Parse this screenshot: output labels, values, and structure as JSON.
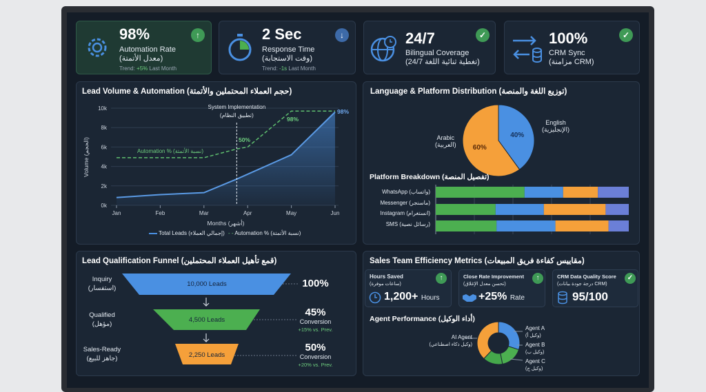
{
  "kpis": [
    {
      "value": "98%",
      "label": "Automation Rate",
      "label_ar": "(معدل الأتمتة)",
      "trend_prefix": "Trend: ",
      "trend_value": "+5%",
      "trend_suffix": " Last Month",
      "badge": "arrow-up",
      "icon": "gear-icon"
    },
    {
      "value": "2 Sec",
      "label": "Response Time",
      "label_ar": "(وقت الاستجابة)",
      "trend_prefix": "Trend: ",
      "trend_value": "-1s",
      "trend_suffix": " Last Month",
      "badge": "arrow-down",
      "icon": "stopwatch-icon"
    },
    {
      "value": "24/7",
      "label": "Bilingual Coverage",
      "label_ar": "(تغطية ثنائية اللغة 24/7)",
      "badge": "check",
      "icon": "globe-clock-icon"
    },
    {
      "value": "100%",
      "label": "CRM Sync",
      "label_ar": "(مزامنة CRM)",
      "badge": "check",
      "icon": "sync-database-icon"
    }
  ],
  "colors": {
    "green": "#4caf50",
    "blue": "#4a90e2",
    "orange": "#f5a03a",
    "purple": "#6b7fd7",
    "accent_green": "#6fcf7f"
  },
  "lead_chart": {
    "title": "Lead Volume & Automation (حجم العملاء المحتملين والأتمتة)",
    "chart_data": {
      "type": "line",
      "categories": [
        "Jan",
        "Feb",
        "Mar",
        "Apr",
        "May",
        "Jun"
      ],
      "y_ticks": [
        "0k",
        "2k",
        "4k",
        "6k",
        "8k",
        "10k"
      ],
      "ylim": [
        0,
        10000
      ],
      "xlabel": "Months (أشهر)",
      "ylabel": "Volume (الحجم)",
      "series": [
        {
          "name": "Total Leads (إجمالي العملاء)",
          "x": [
            0,
            1,
            2,
            2.75,
            4,
            5
          ],
          "values": [
            800,
            1100,
            1300,
            2700,
            5200,
            9600
          ]
        },
        {
          "name": "Automation % (نسبة الأتمتة)",
          "x": [
            0,
            1,
            2,
            2.75,
            3,
            4,
            5
          ],
          "values": [
            4900,
            4900,
            4900,
            5800,
            6000,
            9700,
            9700
          ]
        }
      ],
      "annotation": "System Implementation",
      "annotation_ar": "(تطبيق النظام)",
      "auto_label": "Automation % (نسبة الأتمتة)",
      "point_labels": [
        "50%",
        "98%",
        "98%"
      ]
    }
  },
  "lang_chart": {
    "title": "Language & Platform Distribution (توزيع اللغة والمنصة)",
    "chart_data": {
      "type": "pie",
      "slices": [
        {
          "name": "English",
          "name_ar": "(الإنجليزية)",
          "value": 40,
          "label": "40%"
        },
        {
          "name": "Arabic",
          "name_ar": "(العربية)",
          "value": 60,
          "label": "60%"
        }
      ]
    }
  },
  "platform": {
    "title": "Platform Breakdown (تفصيل المنصة)",
    "labels": [
      "WhatsApp (واتساب)",
      "Messenger (ماسنجر)",
      "Instagram (انستغرام)",
      "SMS (رسائل نصية)"
    ],
    "chart_data": {
      "type": "bar",
      "stacked": true,
      "bars": [
        [
          46,
          20,
          18,
          16
        ],
        [
          31,
          25,
          32,
          12
        ],
        [
          31.5,
          30.5,
          27.5,
          10.5
        ]
      ]
    }
  },
  "funnel": {
    "title": "Lead Qualification Funnel (قمع تأهيل العملاء المحتملين)",
    "stages": [
      {
        "name": "Inquiry",
        "name_ar": "(استفسار)",
        "leads": "10,000 Leads",
        "pct": "100%"
      },
      {
        "name": "Qualified",
        "name_ar": "(مؤهل)",
        "leads": "4,500 Leads",
        "pct": "45%",
        "conv": "Conversion",
        "delta": "+15% vs. Prev."
      },
      {
        "name": "Sales-Ready",
        "name_ar": "(جاهز للبيع)",
        "leads": "2,250 Leads",
        "pct": "50%",
        "conv": "Conversion",
        "delta": "+20% vs. Prev."
      }
    ]
  },
  "sales": {
    "title": "Sales Team Efficiency Metrics (مقاييس كفاءة فريق المبيعات)",
    "metrics": [
      {
        "label": "Hours Saved",
        "label_ar": "(ساعات موفرة)",
        "value": "1,200+",
        "unit": "Hours"
      },
      {
        "label": "Close Rate Improvement",
        "label_ar": "(تحسن معدل الإغلاق)",
        "value": "+25%",
        "unit": "Rate"
      },
      {
        "label": "CRM Data Quality Score",
        "label_ar": "(درجة جودة بيانات CRM)",
        "value": "95/100",
        "unit": ""
      }
    ],
    "agent_title": "Agent Performance (أداء الوكيل)",
    "chart_data": {
      "type": "pie",
      "donut": true,
      "slices": [
        {
          "name": "Agent A",
          "name_ar": "(وكيل أ)",
          "value": 30
        },
        {
          "name": "Agent B",
          "name_ar": "(وكيل ب)",
          "value": 17
        },
        {
          "name": "Agent C",
          "name_ar": "(وكيل ج)",
          "value": 15
        },
        {
          "name": "AI Agent",
          "name_ar": "(وكيل ذكاء اصطناعي)",
          "value": 38
        }
      ]
    }
  }
}
